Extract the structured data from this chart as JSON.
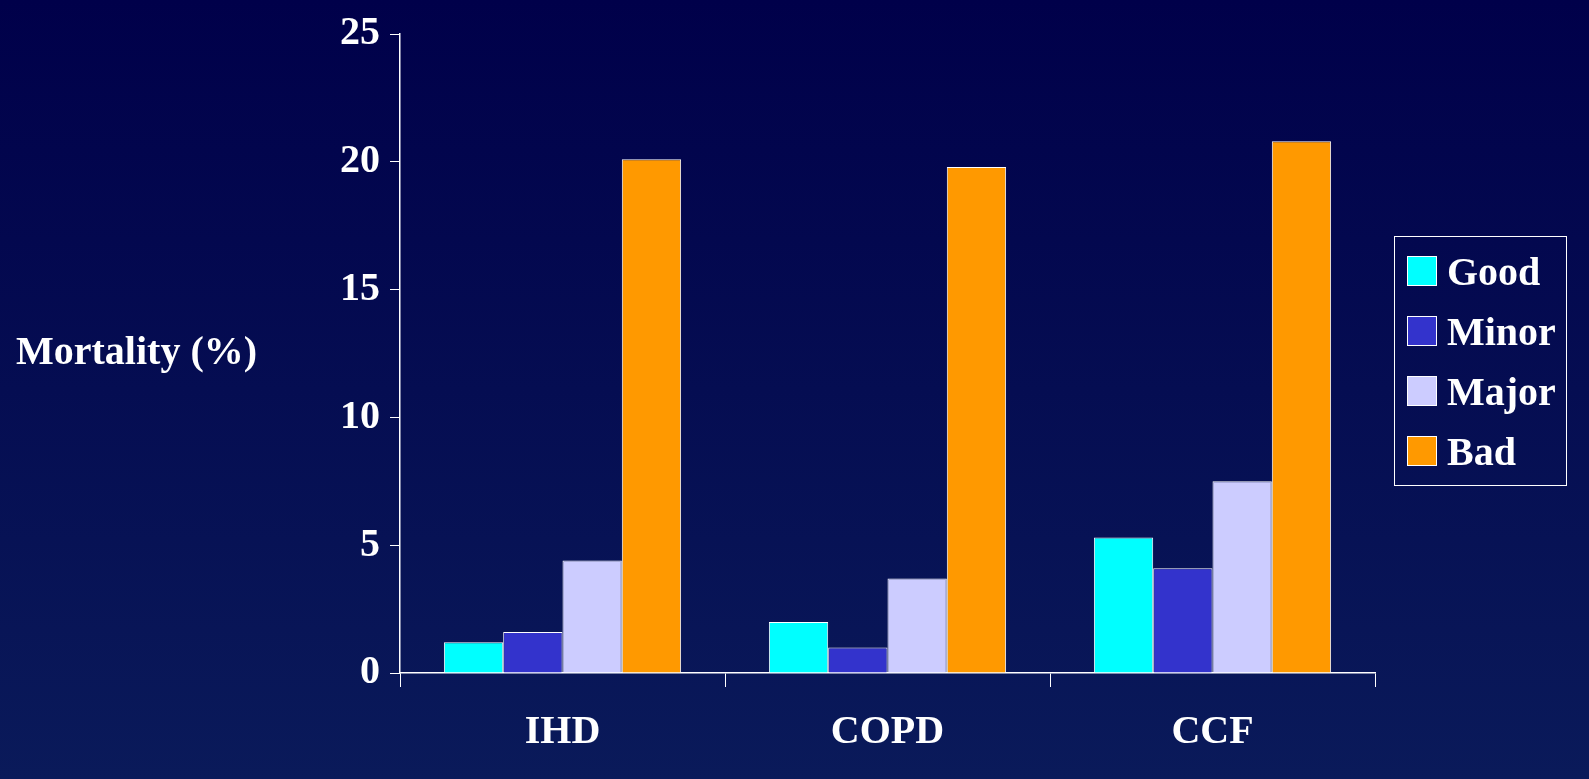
{
  "chart_data": {
    "type": "bar",
    "ylabel": "Mortality (%)",
    "categories": [
      "IHD",
      "COPD",
      "CCF"
    ],
    "series": [
      {
        "name": "Good",
        "color": "#00ffff",
        "values": [
          1.2,
          2.0,
          5.3
        ]
      },
      {
        "name": "Minor",
        "color": "#3333cc",
        "values": [
          1.6,
          1.0,
          4.1
        ]
      },
      {
        "name": "Major",
        "color": "#ccccff",
        "values": [
          4.4,
          3.7,
          7.5
        ]
      },
      {
        "name": "Bad",
        "color": "#ff9900",
        "values": [
          20.1,
          19.8,
          20.8
        ]
      }
    ],
    "ylim": [
      0,
      25
    ],
    "yticks": [
      0,
      5,
      10,
      15,
      20,
      25
    ],
    "grid": false,
    "legend": "right"
  }
}
